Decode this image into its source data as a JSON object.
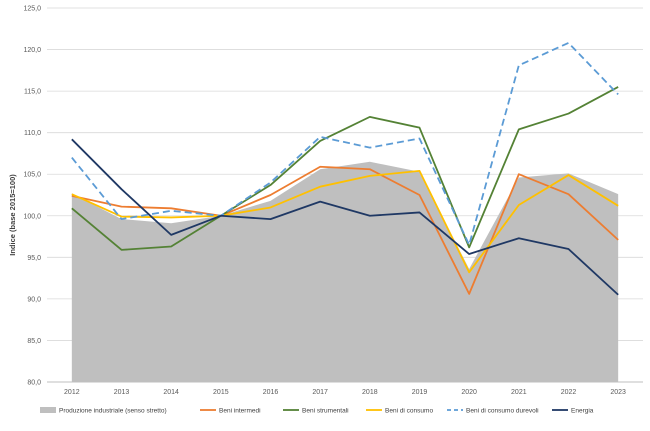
{
  "chart_data": {
    "type": "line",
    "title": "",
    "xlabel": "",
    "ylabel": "Indice (base 2015=100)",
    "x": [
      "2012",
      "2013",
      "2014",
      "2015",
      "2016",
      "2017",
      "2018",
      "2019",
      "2020",
      "2021",
      "2022",
      "2023"
    ],
    "ylim": [
      80,
      125
    ],
    "yticks": [
      80,
      85,
      90,
      95,
      100,
      105,
      110,
      115,
      120,
      125
    ],
    "ytick_labels": [
      "80,0",
      "85,0",
      "90,0",
      "95,0",
      "100,0",
      "105,0",
      "110,0",
      "115,0",
      "120,0",
      "125,0"
    ],
    "grid": true,
    "legend_position": "bottom",
    "series": [
      {
        "name": "Produzione industriale (senso stretto)",
        "kind": "area",
        "color": "#BFBFBF",
        "values": [
          102.7,
          99.6,
          99.1,
          100.0,
          101.8,
          105.6,
          106.5,
          105.3,
          93.6,
          104.6,
          105.1,
          102.6
        ]
      },
      {
        "name": "Beni intermedi",
        "kind": "line",
        "color": "#ED7D31",
        "dash": "solid",
        "values": [
          102.4,
          101.1,
          100.9,
          100.0,
          102.5,
          105.9,
          105.6,
          102.5,
          90.6,
          105.0,
          102.6,
          97.1
        ]
      },
      {
        "name": "Beni strumentali",
        "kind": "line",
        "color": "#548235",
        "dash": "solid",
        "values": [
          100.9,
          95.9,
          96.3,
          100.0,
          103.7,
          109.0,
          111.9,
          110.6,
          96.2,
          110.4,
          112.3,
          115.5
        ]
      },
      {
        "name": "Beni di consumo",
        "kind": "line",
        "color": "#FFC000",
        "dash": "solid",
        "values": [
          102.6,
          99.9,
          99.8,
          100.0,
          101.0,
          103.5,
          104.8,
          105.4,
          93.2,
          101.3,
          104.9,
          101.2
        ]
      },
      {
        "name": "Beni di consumo durevoli",
        "kind": "line",
        "color": "#5B9BD5",
        "dash": "dashed",
        "values": [
          107.0,
          99.6,
          100.6,
          100.0,
          104.0,
          109.5,
          108.2,
          109.3,
          96.5,
          118.1,
          120.8,
          114.6
        ]
      },
      {
        "name": "Energia",
        "kind": "line",
        "color": "#1F3864",
        "dash": "solid",
        "values": [
          109.2,
          103.2,
          97.7,
          100.0,
          99.6,
          101.7,
          100.0,
          100.4,
          95.4,
          97.3,
          96.0,
          90.5
        ]
      }
    ]
  }
}
